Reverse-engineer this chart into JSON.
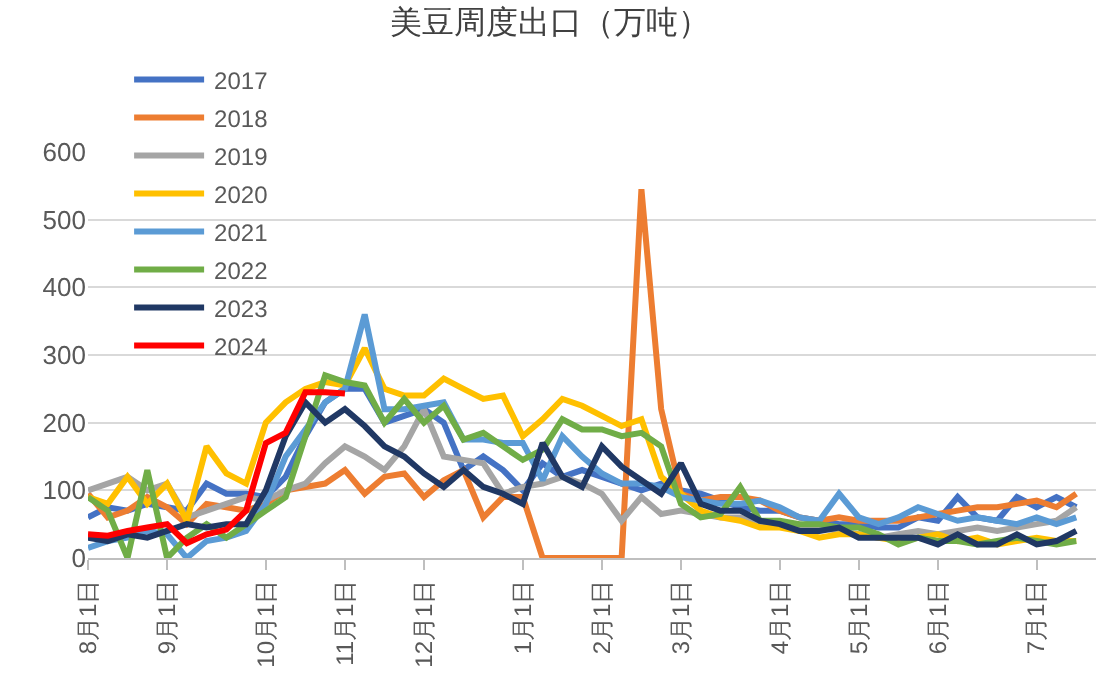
{
  "chart_data": {
    "type": "line",
    "title": "美豆周度出口（万吨）",
    "categories": [
      "8月1日",
      null,
      null,
      null,
      "9月1日",
      null,
      null,
      null,
      null,
      "10月1日",
      null,
      null,
      null,
      "11月1日",
      null,
      null,
      null,
      "12月1日",
      null,
      null,
      null,
      null,
      "1月1日",
      null,
      null,
      null,
      "2月1日",
      null,
      null,
      null,
      "3月1日",
      null,
      null,
      null,
      null,
      "4月1日",
      null,
      null,
      null,
      "5月1日",
      null,
      null,
      null,
      "6月1日",
      null,
      null,
      null,
      null,
      "7月1日",
      null,
      null,
      null
    ],
    "ylim": [
      0,
      600
    ],
    "yticks": [
      0,
      100,
      200,
      300,
      400,
      500,
      600
    ],
    "grid": "y",
    "legend": "top",
    "series": [
      {
        "name": "2017",
        "color": "#4472c4",
        "values": [
          60,
          75,
          70,
          80,
          75,
          70,
          110,
          95,
          95,
          90,
          120,
          180,
          230,
          250,
          250,
          200,
          210,
          220,
          200,
          130,
          150,
          130,
          100,
          140,
          120,
          130,
          120,
          110,
          100,
          110,
          100,
          95,
          85,
          75,
          70,
          70,
          60,
          55,
          50,
          50,
          45,
          45,
          60,
          55,
          90,
          60,
          55,
          90,
          75,
          90,
          75,
          null
        ]
      },
      {
        "name": "2018",
        "color": "#ed7d31",
        "values": [
          95,
          60,
          70,
          90,
          75,
          50,
          80,
          75,
          70,
          80,
          100,
          105,
          110,
          130,
          95,
          120,
          125,
          90,
          115,
          130,
          60,
          90,
          90,
          0,
          0,
          0,
          0,
          0,
          545,
          220,
          95,
          85,
          90,
          90,
          85,
          70,
          60,
          55,
          60,
          55,
          55,
          55,
          60,
          65,
          70,
          75,
          75,
          80,
          85,
          75,
          95,
          null
        ]
      },
      {
        "name": "2019",
        "color": "#a5a5a5",
        "values": [
          100,
          110,
          120,
          100,
          110,
          60,
          70,
          80,
          90,
          85,
          100,
          110,
          140,
          165,
          150,
          130,
          165,
          220,
          150,
          145,
          140,
          95,
          105,
          110,
          120,
          110,
          95,
          55,
          90,
          65,
          70,
          65,
          60,
          60,
          50,
          50,
          45,
          45,
          40,
          35,
          30,
          35,
          40,
          35,
          40,
          45,
          40,
          45,
          50,
          55,
          75,
          null
        ]
      },
      {
        "name": "2020",
        "color": "#ffc000",
        "values": [
          90,
          80,
          120,
          80,
          110,
          55,
          165,
          125,
          110,
          200,
          230,
          250,
          260,
          255,
          310,
          250,
          240,
          240,
          265,
          250,
          235,
          240,
          180,
          205,
          235,
          225,
          210,
          195,
          205,
          120,
          95,
          70,
          60,
          55,
          45,
          45,
          40,
          30,
          35,
          35,
          30,
          25,
          30,
          35,
          25,
          30,
          20,
          25,
          30,
          25,
          25,
          null
        ]
      },
      {
        "name": "2021",
        "color": "#5b9bd5",
        "values": [
          15,
          25,
          30,
          40,
          35,
          0,
          25,
          30,
          40,
          80,
          150,
          190,
          230,
          250,
          360,
          220,
          220,
          225,
          230,
          175,
          175,
          170,
          170,
          115,
          180,
          150,
          125,
          110,
          110,
          105,
          90,
          85,
          80,
          80,
          85,
          75,
          60,
          55,
          95,
          60,
          50,
          60,
          75,
          65,
          55,
          60,
          55,
          50,
          60,
          50,
          60,
          null
        ]
      },
      {
        "name": "2022",
        "color": "#70ad47",
        "values": [
          90,
          70,
          0,
          130,
          0,
          30,
          50,
          30,
          50,
          70,
          90,
          180,
          270,
          260,
          255,
          200,
          235,
          200,
          225,
          175,
          185,
          165,
          145,
          160,
          205,
          190,
          190,
          180,
          185,
          165,
          80,
          60,
          65,
          105,
          55,
          55,
          50,
          50,
          45,
          45,
          35,
          20,
          30,
          25,
          25,
          20,
          25,
          30,
          25,
          20,
          25,
          null
        ]
      },
      {
        "name": "2023",
        "color": "#203864",
        "values": [
          30,
          25,
          35,
          30,
          40,
          50,
          45,
          50,
          50,
          100,
          180,
          230,
          200,
          220,
          195,
          165,
          150,
          125,
          105,
          130,
          105,
          95,
          80,
          170,
          120,
          105,
          165,
          135,
          115,
          95,
          140,
          80,
          70,
          70,
          55,
          50,
          40,
          40,
          45,
          30,
          30,
          30,
          30,
          20,
          35,
          20,
          20,
          35,
          20,
          25,
          40,
          null
        ]
      },
      {
        "name": "2024",
        "color": "#ff0000",
        "values": [
          35,
          33,
          40,
          45,
          50,
          22,
          35,
          42,
          70,
          170,
          185,
          245,
          245,
          243,
          null,
          null,
          null,
          null,
          null,
          null,
          null,
          null,
          null,
          null,
          null,
          null,
          null,
          null,
          null,
          null,
          null,
          null,
          null,
          null,
          null,
          null,
          null,
          null,
          null,
          null,
          null,
          null,
          null,
          null,
          null,
          null,
          null,
          null,
          null,
          null,
          null,
          null
        ]
      }
    ]
  }
}
